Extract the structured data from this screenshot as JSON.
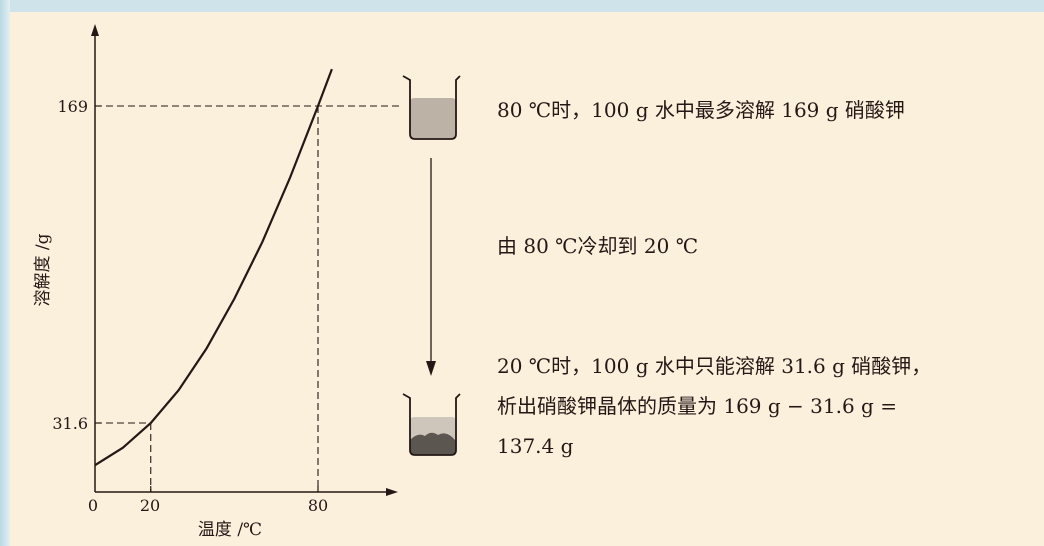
{
  "chart_data": {
    "type": "line",
    "xlabel": "温度 /℃",
    "ylabel": "溶解度 /g",
    "x_ticks": [
      "0",
      "20",
      "80"
    ],
    "y_ticks": [
      "169",
      "31.6"
    ],
    "series": [
      {
        "x": [
          0,
          10,
          20,
          30,
          40,
          50,
          60,
          70,
          80,
          85
        ],
        "y": [
          13.3,
          20.9,
          31.6,
          45.8,
          63.9,
          85.5,
          110,
          138,
          169,
          185
        ]
      }
    ],
    "markers": [
      {
        "x": 20,
        "y": 31.6
      },
      {
        "x": 80,
        "y": 169
      }
    ]
  },
  "text": {
    "line1": "80 ℃时，100 g 水中最多溶解 169 g 硝酸钾",
    "line2": "由 80 ℃冷却到 20 ℃",
    "line3a": "20 ℃时，100 g 水中只能溶解 31.6 g 硝酸钾，",
    "line3b": "析出硝酸钾晶体的质量为 169 g − 31.6 g =",
    "line3c": "137.4 g"
  }
}
